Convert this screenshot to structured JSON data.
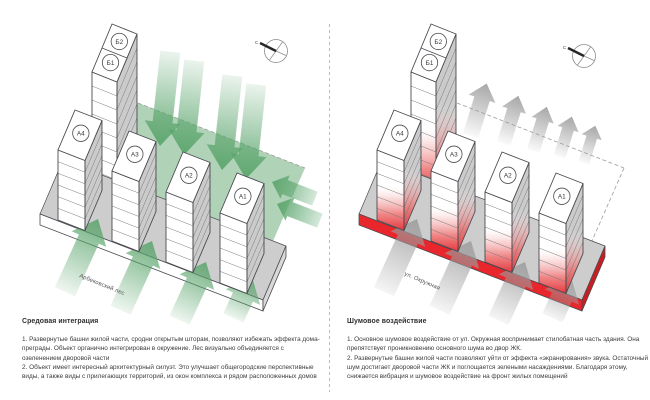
{
  "panels": [
    {
      "id": "environment",
      "title": "Средовая интеграция",
      "area_label": "Арбековский лес",
      "paragraphs": [
        "1. Развернутые башни жилой части, сродни открытым шторам, позволяют избежать эффекта дома-преграды. Объект органично интегрирован в окружение. Лес визуально объединяется с озеленением дворовой части",
        "2. Объект имеет интересный архитектурный силуэт. Это улучшает общегородские перспективные виды, а также виды с прилегающих территорий, из окон комплекса и рядом расположенных домов"
      ]
    },
    {
      "id": "noise",
      "title": "Шумовое воздействие",
      "area_label": "ул. Окружная",
      "paragraphs": [
        "1. Основное шумовое воздействие от ул. Окружная воспринимает стилобатная часть здания. Она препятствует проникновению основного шума во двор ЖК.",
        "2. Развернутые башни жилой части позволяют уйти от эффекта «экранирования» звука. Остаточный шум достигает дворовой части ЖК и поглощается зелеными насаждениями. Благодаря этому, снижается вибрация и шумовое воздействие на фронт жилых помещений"
      ]
    }
  ],
  "buildings": {
    "row": [
      "А4",
      "А3",
      "А2",
      "А1"
    ],
    "tall": [
      "Б1",
      "Б2"
    ]
  },
  "compass": {
    "north_label": "С"
  },
  "colors": {
    "green_arrow": "#57a369",
    "green_band": "#8fbf98",
    "gray_arrow": "#9b9b9b",
    "red_accent": "#e8262b",
    "red_dark": "#c81e23",
    "building_side": "#cbcbcb",
    "plinth_top": "#cdcdcd",
    "outline": "#4a4b50",
    "floor_line": "#77787c",
    "dashed_line": "#9d9d9d",
    "text": "#3c3c3c"
  }
}
